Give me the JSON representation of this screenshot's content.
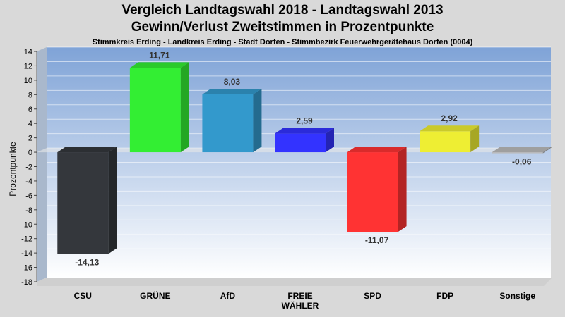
{
  "chart_data": {
    "type": "bar",
    "title": "Vergleich Landtagswahl 2018 - Landtagswahl 2013",
    "title_line2": "Gewinn/Verlust Zweitstimmen in Prozentpunkte",
    "subtitle": "Stimmkreis Erding - Landkreis Erding - Stadt Dorfen - Stimmbezirk Feuerwehrgerätehaus Dorfen (0004)",
    "ylabel": "Prozentpunkte",
    "xlabel": "",
    "ylim": [
      -18,
      14
    ],
    "yticks": [
      14,
      12,
      10,
      8,
      6,
      4,
      2,
      0,
      -2,
      -4,
      -6,
      -8,
      -10,
      -12,
      -14,
      -16,
      -18
    ],
    "categories": [
      "CSU",
      "GRÜNE",
      "AfD",
      "FREIE\nWÄHLER",
      "SPD",
      "FDP",
      "Sonstige"
    ],
    "values": [
      -14.13,
      11.71,
      8.03,
      2.59,
      -11.07,
      2.92,
      -0.06
    ],
    "value_labels": [
      "-14,13",
      "11,71",
      "8,03",
      "2,59",
      "-11,07",
      "2,92",
      "-0,06"
    ],
    "colors": [
      "#34373c",
      "#33ee33",
      "#3399cc",
      "#3333ff",
      "#ff3333",
      "#eeee33",
      "#bbbbbb"
    ],
    "grid": true,
    "legend": "none"
  }
}
